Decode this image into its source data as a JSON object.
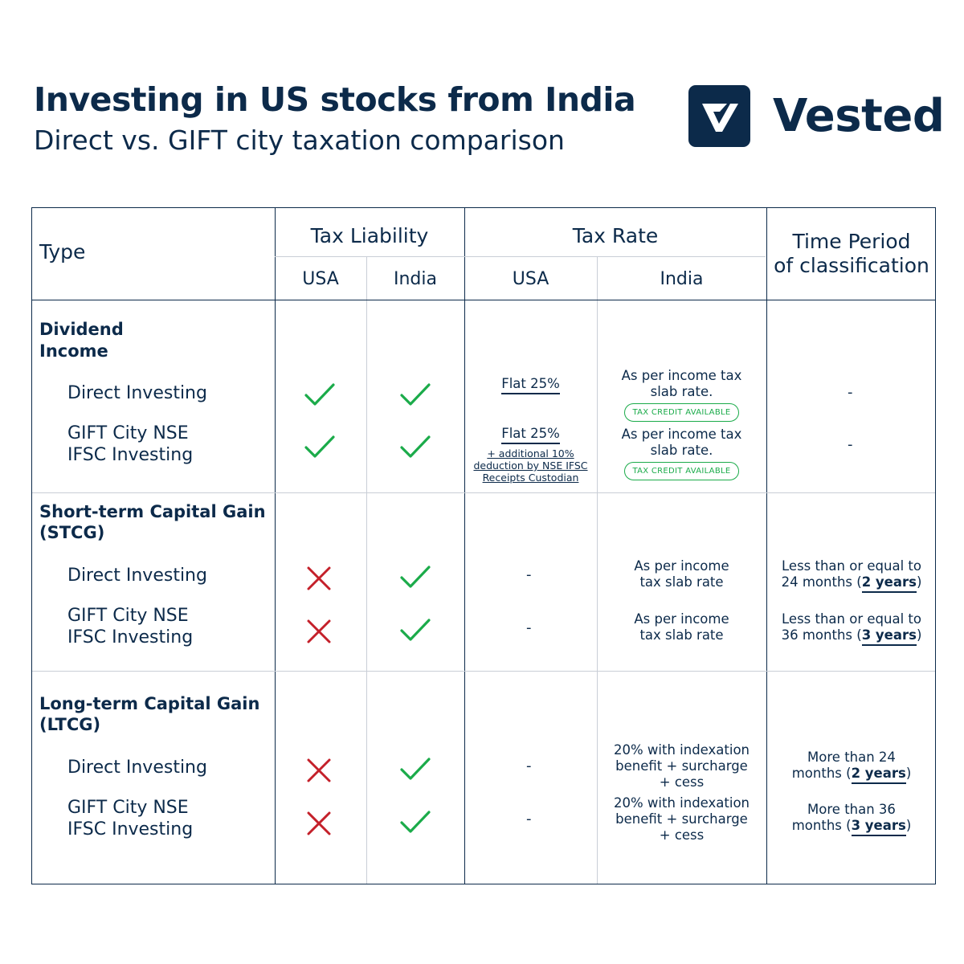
{
  "header": {
    "title": "Investing in US stocks from India",
    "subtitle": "Direct vs. GIFT city taxation comparison",
    "brand": "Vested",
    "logo_icon": "vested-v-logo-icon"
  },
  "colors": {
    "primary": "#0c2a4a",
    "check": "#1bab4a",
    "cross": "#c4202a"
  },
  "table": {
    "col_type": "Type",
    "col_tax_liability": "Tax Liability",
    "col_tax_rate": "Tax Rate",
    "col_time_period_line1": "Time Period",
    "col_time_period_line2": "of classification",
    "sub_usa": "USA",
    "sub_india": "India",
    "sections": [
      {
        "title_line1": "Dividend",
        "title_line2": "Income",
        "rows": [
          {
            "label_line1": "Direct Investing",
            "usa_liability": "check",
            "india_liability": "check",
            "usa_rate": "Flat 25%",
            "india_rate_line1": "As per income tax",
            "india_rate_line2": "slab rate.",
            "india_badge": "TAX CREDIT AVAILABLE",
            "period": "-"
          },
          {
            "label_line1": "GIFT City NSE",
            "label_line2": "IFSC Investing",
            "usa_liability": "check",
            "india_liability": "check",
            "usa_rate": "Flat 25%",
            "usa_note_line1": "+ additional 10%",
            "usa_note_line2": "deduction by NSE IFSC",
            "usa_note_line3": "Receipts Custodian",
            "india_rate_line1": "As per income tax",
            "india_rate_line2": "slab rate.",
            "india_badge": "TAX CREDIT AVAILABLE",
            "period": "-"
          }
        ]
      },
      {
        "title_line1": "Short-term Capital Gain",
        "title_line2": "(STCG)",
        "rows": [
          {
            "label_line1": "Direct Investing",
            "usa_liability": "cross",
            "india_liability": "check",
            "usa_rate": "-",
            "india_rate_line1": "As per income",
            "india_rate_line2": "tax slab rate",
            "period_line1": "Less than or equal to",
            "period_pre": "24 months (",
            "period_bold": "2 years",
            "period_post": ")"
          },
          {
            "label_line1": "GIFT City NSE",
            "label_line2": "IFSC Investing",
            "usa_liability": "cross",
            "india_liability": "check",
            "usa_rate": "-",
            "india_rate_line1": "As per income",
            "india_rate_line2": "tax slab rate",
            "period_line1": "Less than or equal to",
            "period_pre": "36 months (",
            "period_bold": "3 years",
            "period_post": ")"
          }
        ]
      },
      {
        "title_line1": "Long-term Capital Gain",
        "title_line2": "(LTCG)",
        "rows": [
          {
            "label_line1": "Direct Investing",
            "usa_liability": "cross",
            "india_liability": "check",
            "usa_rate": "-",
            "india_rate_line1": "20% with indexation",
            "india_rate_line2": "benefit + surcharge",
            "india_rate_line3": "+ cess",
            "period_line1": "More than 24",
            "period_pre": "months (",
            "period_bold": "2 years",
            "period_post": ")"
          },
          {
            "label_line1": "GIFT City NSE",
            "label_line2": "IFSC Investing",
            "usa_liability": "cross",
            "india_liability": "check",
            "usa_rate": "-",
            "india_rate_line1": "20% with indexation",
            "india_rate_line2": "benefit + surcharge",
            "india_rate_line3": "+ cess",
            "period_line1": "More than 36",
            "period_pre": "months (",
            "period_bold": "3 years",
            "period_post": ")"
          }
        ]
      }
    ]
  }
}
